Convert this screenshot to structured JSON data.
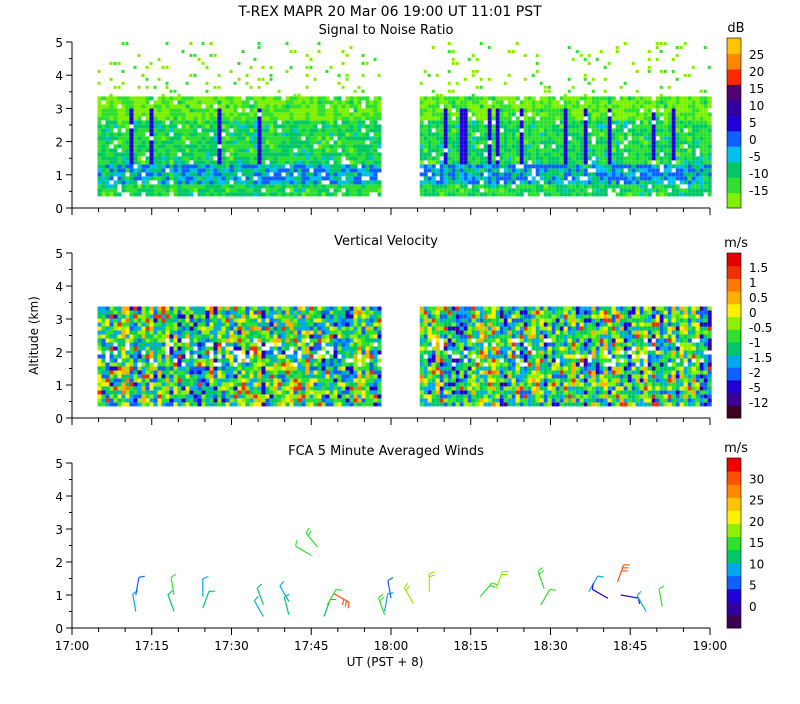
{
  "header": {
    "title": "T-REX   MAPR 20 Mar 06   19:00 UT   11:01   PST"
  },
  "chart_data": [
    {
      "type": "heatmap",
      "title": "Signal to Noise Ratio",
      "ylabel": "",
      "ylim": [
        0,
        5
      ],
      "yticks": [
        "0",
        "1",
        "2",
        "3",
        "4",
        "5"
      ],
      "xlim": [
        "17:00",
        "19:00"
      ],
      "colorbar": {
        "unit": "dB",
        "colors": [
          "#7ff000",
          "#30e030",
          "#00c868",
          "#00c0f0",
          "#1060ff",
          "#2000d8",
          "#3000a0",
          "#500070",
          "#ff2800",
          "#ff8800",
          "#ffc400"
        ],
        "labels": [
          "-15",
          "-10",
          "-5",
          "0",
          "5",
          "10",
          "15",
          "20",
          "25"
        ]
      }
    },
    {
      "type": "heatmap",
      "title": "Vertical Velocity",
      "ylabel": "Altitude (km)",
      "ylim": [
        0,
        5
      ],
      "yticks": [
        "0",
        "1",
        "2",
        "3",
        "4",
        "5"
      ],
      "xlim": [
        "17:00",
        "19:00"
      ],
      "colorbar": {
        "unit": "m/s",
        "colors": [
          "#400020",
          "#3c0090",
          "#2000d8",
          "#1060ff",
          "#00a8f0",
          "#00c868",
          "#30e030",
          "#90f000",
          "#fff000",
          "#ffb000",
          "#ff7800",
          "#f03000",
          "#e00000"
        ],
        "labels": [
          "-12",
          "-5",
          "-2",
          "-1.5",
          "-1",
          "-0.5",
          "0",
          "0.5",
          "1",
          "1.5"
        ]
      }
    },
    {
      "type": "scatter",
      "title": "FCA 5 Minute Averaged Winds",
      "ylabel": "",
      "ylim": [
        0,
        5
      ],
      "yticks": [
        "0",
        "1",
        "2",
        "3",
        "4",
        "5"
      ],
      "xlim": [
        "17:00",
        "19:00"
      ],
      "xticks": [
        "17:00",
        "17:15",
        "17:30",
        "17:45",
        "18:00",
        "18:15",
        "18:30",
        "18:45",
        "19:00"
      ],
      "xlabel": "UT  (PST + 8)",
      "colorbar": {
        "unit": "m/s",
        "colors": [
          "#400050",
          "#3000a0",
          "#2000d8",
          "#1060ff",
          "#00a8f0",
          "#00c868",
          "#30e030",
          "#90f000",
          "#fff000",
          "#ffc400",
          "#ff8800",
          "#ff5000",
          "#f00000"
        ],
        "labels": [
          "0",
          "5",
          "10",
          "15",
          "20",
          "25",
          "30"
        ]
      },
      "barbs": [
        {
          "t": 17.2,
          "h": 0.5,
          "speed": 10,
          "dir": 350
        },
        {
          "t": 17.2,
          "h": 1.0,
          "speed": 8,
          "dir": 10
        },
        {
          "t": 17.32,
          "h": 0.5,
          "speed": 12,
          "dir": 340
        },
        {
          "t": 17.32,
          "h": 1.0,
          "speed": 14,
          "dir": 350
        },
        {
          "t": 17.41,
          "h": 0.6,
          "speed": 12,
          "dir": 20
        },
        {
          "t": 17.41,
          "h": 0.95,
          "speed": 10,
          "dir": 0
        },
        {
          "t": 17.6,
          "h": 0.35,
          "speed": 11,
          "dir": 330
        },
        {
          "t": 17.6,
          "h": 0.7,
          "speed": 13,
          "dir": 340
        },
        {
          "t": 17.68,
          "h": 0.4,
          "speed": 12,
          "dir": 345
        },
        {
          "t": 17.68,
          "h": 0.8,
          "speed": 10,
          "dir": 330
        },
        {
          "t": 17.75,
          "h": 2.2,
          "speed": 14,
          "dir": 300
        },
        {
          "t": 17.77,
          "h": 2.45,
          "speed": 16,
          "dir": 320
        },
        {
          "t": 17.79,
          "h": 0.35,
          "speed": 12,
          "dir": 20
        },
        {
          "t": 17.8,
          "h": 0.7,
          "speed": 14,
          "dir": 30
        },
        {
          "t": 17.82,
          "h": 1.05,
          "speed": 28,
          "dir": 120
        },
        {
          "t": 17.98,
          "h": 0.5,
          "speed": 9,
          "dir": 10
        },
        {
          "t": 18.0,
          "h": 0.9,
          "speed": 8,
          "dir": 350
        },
        {
          "t": 17.98,
          "h": 0.4,
          "speed": 16,
          "dir": 340
        },
        {
          "t": 18.07,
          "h": 0.75,
          "speed": 17,
          "dir": 330
        },
        {
          "t": 18.12,
          "h": 1.1,
          "speed": 18,
          "dir": 0
        },
        {
          "t": 18.28,
          "h": 0.95,
          "speed": 16,
          "dir": 40
        },
        {
          "t": 18.33,
          "h": 1.2,
          "speed": 18,
          "dir": 20
        },
        {
          "t": 18.47,
          "h": 0.7,
          "speed": 14,
          "dir": 30
        },
        {
          "t": 18.48,
          "h": 1.2,
          "speed": 15,
          "dir": 340
        },
        {
          "t": 18.62,
          "h": 1.1,
          "speed": 9,
          "dir": 30
        },
        {
          "t": 18.68,
          "h": 0.9,
          "speed": 5,
          "dir": 300
        },
        {
          "t": 18.72,
          "h": 1.0,
          "speed": 6,
          "dir": 100
        },
        {
          "t": 18.71,
          "h": 1.4,
          "speed": 27,
          "dir": 20
        },
        {
          "t": 18.8,
          "h": 0.5,
          "speed": 11,
          "dir": 330
        },
        {
          "t": 18.85,
          "h": 0.65,
          "speed": 14,
          "dir": 350
        }
      ]
    }
  ]
}
